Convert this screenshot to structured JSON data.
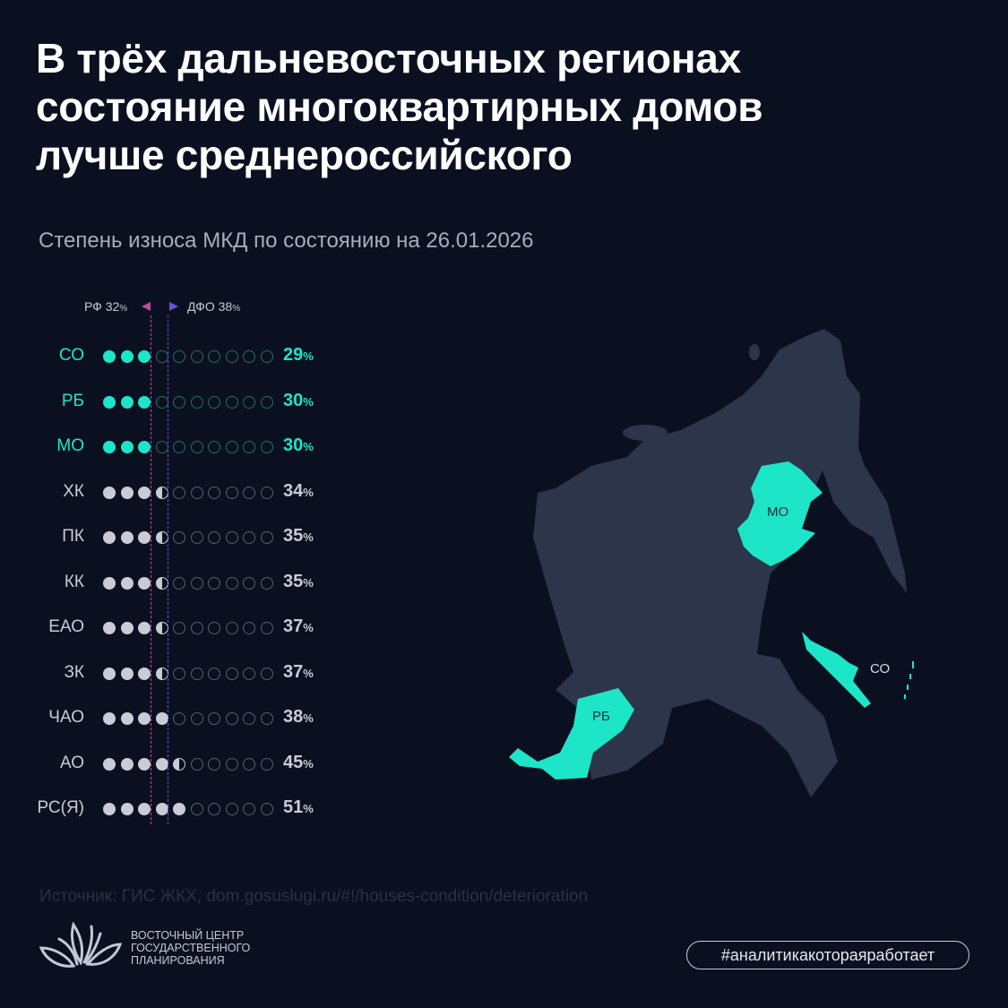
{
  "title_lines": [
    "В трёх дальневосточных регионах",
    "состояние многоквартирных домов",
    "лучше среднероссийского"
  ],
  "subtitle": "Степень износа МКД по состоянию на 26.01.2026",
  "colors": {
    "accent": "#1de5c8",
    "neutral": "#c9ccd6",
    "rf_marker": "#c04a9c",
    "dfo_marker": "#6a4fd6",
    "land": "#2c3549",
    "background": "#0b1020"
  },
  "chart_data": {
    "type": "dot-matrix",
    "title": "Степень износа МКД по состоянию на 26.01.2026",
    "unit": "%",
    "dot_scale": 10,
    "dots_total": 10,
    "reference_lines": [
      {
        "label": "РФ",
        "value": 32,
        "display": "32",
        "unit": "%"
      },
      {
        "label": "ДФО",
        "value": 38,
        "display": "38",
        "unit": "%"
      }
    ],
    "categories": [
      "СО",
      "РБ",
      "МО",
      "ХК",
      "ПК",
      "КК",
      "ЕАО",
      "ЗК",
      "ЧАО",
      "АО",
      "РС(Я)"
    ],
    "values": [
      29,
      30,
      30,
      34,
      35,
      35,
      37,
      37,
      38,
      45,
      51
    ],
    "highlighted": [
      "СО",
      "РБ",
      "МО"
    ]
  },
  "map": {
    "labels": {
      "mo": "МО",
      "rb": "РБ",
      "so": "СО"
    }
  },
  "source": "Источник: ГИС ЖКХ, dom.gosuslugi.ru/#!/houses-condition/deterioration",
  "org_name_lines": [
    "ВОСТОЧНЫЙ ЦЕНТР",
    "ГОСУДАРСТВЕННОГО",
    "ПЛАНИРОВАНИЯ"
  ],
  "hashtag": "#аналитикакотораяработает"
}
